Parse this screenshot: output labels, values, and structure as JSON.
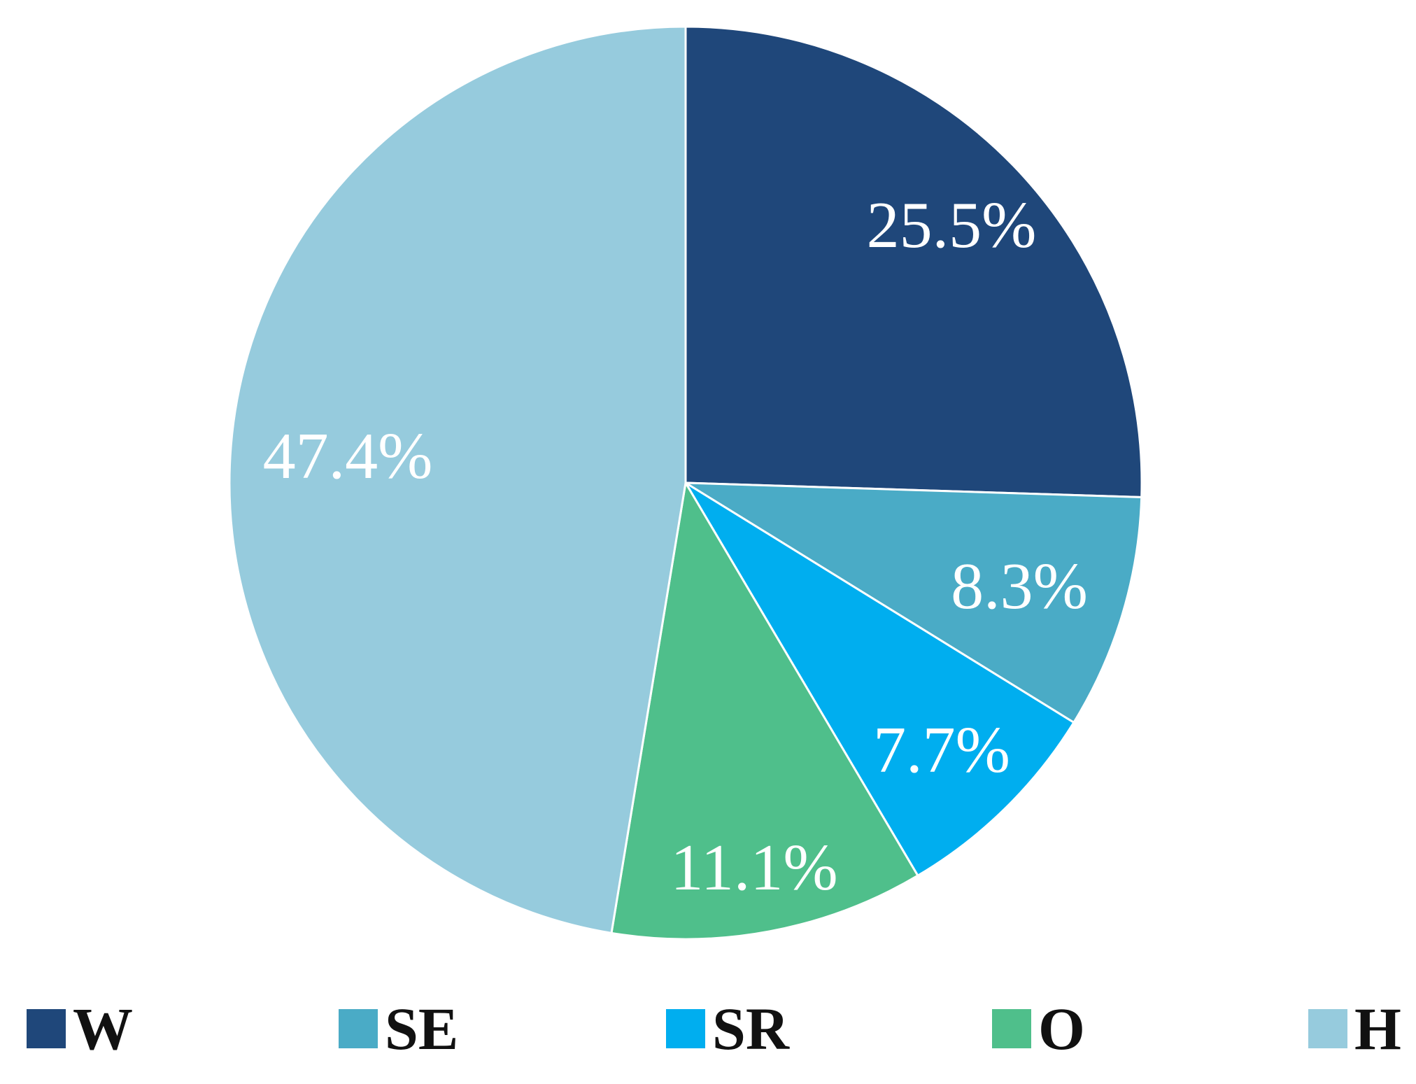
{
  "chart_data": {
    "type": "pie",
    "start_angle_deg": 90,
    "direction": "clockwise",
    "slices": [
      {
        "name": "W",
        "value": 25.5,
        "label": "25.5%",
        "color": "#1F477A"
      },
      {
        "name": "SE",
        "value": 8.3,
        "label": "8.3%",
        "color": "#4AABC6"
      },
      {
        "name": "SR",
        "value": 7.7,
        "label": "7.7%",
        "color": "#00AEEF"
      },
      {
        "name": "O",
        "value": 11.1,
        "label": "11.1%",
        "color": "#4FBF8B"
      },
      {
        "name": "H",
        "value": 47.4,
        "label": "47.4%",
        "color": "#96CBDD"
      }
    ],
    "legend": {
      "placement": "bottom",
      "entries": [
        "W",
        "SE",
        "SR",
        "O",
        "H"
      ]
    }
  }
}
